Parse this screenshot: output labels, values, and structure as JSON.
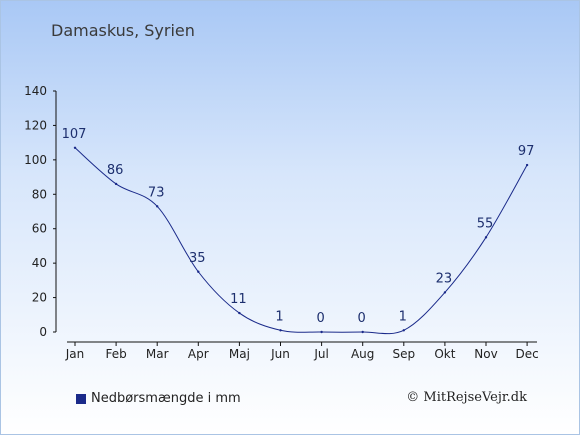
{
  "chart_data": {
    "type": "line",
    "title": "Damaskus, Syrien",
    "categories": [
      "Jan",
      "Feb",
      "Mar",
      "Apr",
      "Maj",
      "Jun",
      "Jul",
      "Aug",
      "Sep",
      "Okt",
      "Nov",
      "Dec"
    ],
    "series": [
      {
        "name": "Nedbørsmængde i mm",
        "values": [
          107,
          86,
          73,
          35,
          11,
          1,
          0,
          0,
          1,
          23,
          55,
          97
        ],
        "color": "#1a2a8a"
      }
    ],
    "yticks": [
      0,
      20,
      40,
      60,
      80,
      100,
      120,
      140
    ],
    "ylim": [
      0,
      140
    ],
    "xlabel": "",
    "ylabel": "",
    "grid": false,
    "legend_position": "bottom-left"
  },
  "credit": "© MitRejseVejr.dk"
}
